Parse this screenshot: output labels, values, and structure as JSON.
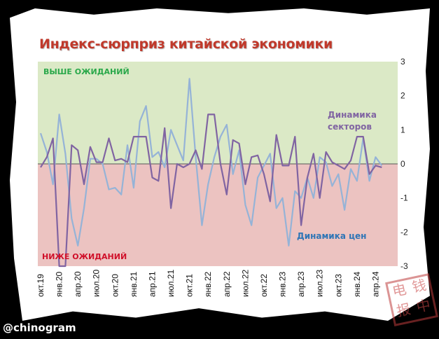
{
  "title": "Индекс-сюрприз китайской экономики",
  "handle": "@chinogram",
  "stamp_text": [
    "电",
    "钱",
    "报",
    "中"
  ],
  "colors": {
    "sectors": "#8064a2",
    "prices": "#95b3d7",
    "above_bg": "#dbe9c6",
    "below_bg": "#ecc3c1",
    "above_text": "#2aa84a",
    "below_text": "#d0102a",
    "title": "#c0392b"
  },
  "chart_data": {
    "type": "line",
    "title": "Индекс-сюрприз китайской экономики",
    "ylim": [
      -3,
      3
    ],
    "yticks": [
      "3",
      "2",
      "1",
      "0",
      "-1",
      "-2",
      "-3"
    ],
    "ytick_values": [
      3,
      2,
      1,
      0,
      -1,
      -2,
      -3
    ],
    "xtick_labels": [
      "окт.19",
      "янв.20",
      "апр.20",
      "июл.20",
      "окт.20",
      "янв.21",
      "апр.21",
      "июл.21",
      "окт.21",
      "янв.22",
      "апр.22",
      "июл.22",
      "окт.22",
      "янв.23",
      "апр.23",
      "июл.23",
      "окт.23",
      "янв.24",
      "апр.24"
    ],
    "xtick_every": 3,
    "n_points": 56,
    "zones": {
      "above": "ВЫШЕ ОЖИДАНИЙ",
      "below": "НИЖЕ ОЖИДАНИЙ"
    },
    "series": [
      {
        "name": "Динамика цен",
        "color": "#95b3d7",
        "values": [
          0.9,
          0.35,
          -0.6,
          1.45,
          0.3,
          -1.6,
          -2.4,
          -1.3,
          0.15,
          0.15,
          0,
          -0.75,
          -0.7,
          -0.9,
          0.55,
          -0.7,
          1.25,
          1.7,
          0.2,
          0.35,
          -0.1,
          1.0,
          0.55,
          0.1,
          2.5,
          0.2,
          -1.8,
          -0.6,
          0.2,
          0.8,
          1.15,
          -0.3,
          0.4,
          -1.2,
          -1.8,
          -0.4,
          -0.05,
          0.3,
          -1.3,
          -1.0,
          -2.4,
          -0.8,
          -1.0,
          -0.4,
          -1.0,
          0.2,
          0.05,
          -0.65,
          -0.3,
          -1.35,
          -0.15,
          -0.5,
          0.75,
          -0.5,
          0.2,
          -0.05
        ]
      },
      {
        "name": "Динамика секторов",
        "color": "#8064a2",
        "values": [
          -0.1,
          0.2,
          0.75,
          -9,
          -7,
          0.55,
          0.4,
          -0.6,
          0.5,
          0.05,
          0.05,
          0.75,
          0.1,
          0.15,
          0.05,
          0.8,
          0.8,
          0.8,
          -0.4,
          -0.5,
          1.05,
          -1.3,
          0,
          -0.1,
          0,
          0.4,
          -0.15,
          1.45,
          1.45,
          0,
          -0.9,
          0.7,
          0.6,
          -0.6,
          0.2,
          0.25,
          -0.3,
          -1.1,
          0.85,
          -0.05,
          -0.05,
          0.8,
          -1.8,
          -0.4,
          0.3,
          -1.0,
          0.35,
          0.05,
          -0.05,
          -0.15,
          0.1,
          0.8,
          0.8,
          -0.3,
          -0.05,
          -0.1
        ]
      }
    ],
    "annotations": {
      "sectors_label_1": "Динамика",
      "sectors_label_2": "секторов",
      "prices_label": "Динамика цен"
    }
  }
}
